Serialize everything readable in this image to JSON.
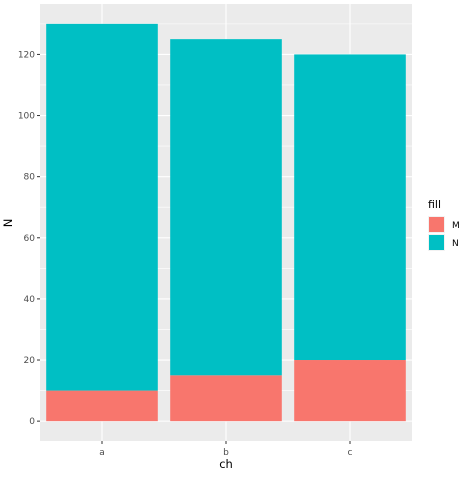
{
  "chart_data": {
    "type": "bar",
    "stacked": true,
    "categories": [
      "a",
      "b",
      "c"
    ],
    "series": [
      {
        "name": "M",
        "values": [
          10,
          15,
          20
        ],
        "color": "#F8766D"
      },
      {
        "name": "N",
        "values": [
          120,
          110,
          100
        ],
        "color": "#00BFC4"
      }
    ],
    "xlabel": "ch",
    "ylabel": "N",
    "ylim": [
      -6.5,
      136.5
    ],
    "yticks": [
      0,
      20,
      40,
      60,
      80,
      100,
      120
    ],
    "yminor": [
      10,
      30,
      50,
      70,
      90,
      110,
      130
    ],
    "legend": {
      "title": "fill",
      "position": "right"
    },
    "grid": true,
    "panel_background": "#EBEBEB",
    "grid_color": "#FFFFFF"
  }
}
